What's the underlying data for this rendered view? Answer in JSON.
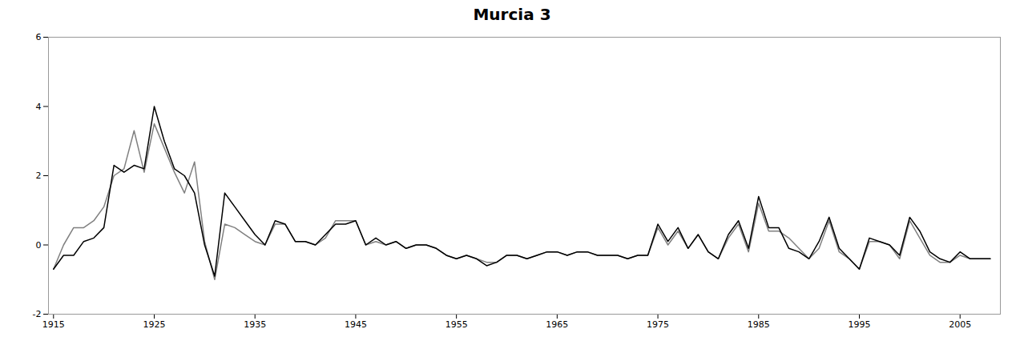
{
  "chart_data": {
    "type": "line",
    "title": "Murcia 3",
    "x": [
      1915,
      1916,
      1917,
      1918,
      1919,
      1920,
      1921,
      1922,
      1923,
      1924,
      1925,
      1926,
      1927,
      1928,
      1929,
      1930,
      1931,
      1932,
      1933,
      1934,
      1935,
      1936,
      1937,
      1938,
      1939,
      1940,
      1941,
      1942,
      1943,
      1944,
      1945,
      1946,
      1947,
      1948,
      1949,
      1950,
      1951,
      1952,
      1953,
      1954,
      1955,
      1956,
      1957,
      1958,
      1959,
      1960,
      1961,
      1962,
      1963,
      1964,
      1965,
      1966,
      1967,
      1968,
      1969,
      1970,
      1971,
      1972,
      1973,
      1974,
      1975,
      1976,
      1977,
      1978,
      1979,
      1980,
      1981,
      1982,
      1983,
      1984,
      1985,
      1986,
      1987,
      1988,
      1989,
      1990,
      1991,
      1992,
      1993,
      1994,
      1995,
      1996,
      1997,
      1998,
      1999,
      2000,
      2001,
      2002,
      2003,
      2004,
      2005,
      2006,
      2007,
      2008
    ],
    "series": [
      {
        "color": "#808080",
        "values": [
          -0.7,
          0.0,
          0.5,
          0.5,
          0.7,
          1.1,
          2.0,
          2.2,
          3.3,
          2.1,
          3.5,
          2.8,
          2.1,
          1.5,
          2.4,
          0.1,
          -1.0,
          0.6,
          0.5,
          0.3,
          0.1,
          0.0,
          0.6,
          0.6,
          0.1,
          0.1,
          0.0,
          0.2,
          0.7,
          0.7,
          0.7,
          0.0,
          0.1,
          0.0,
          0.1,
          -0.1,
          0.0,
          0.0,
          -0.1,
          -0.3,
          -0.4,
          -0.3,
          -0.4,
          -0.5,
          -0.5,
          -0.3,
          -0.3,
          -0.4,
          -0.3,
          -0.2,
          -0.2,
          -0.3,
          -0.2,
          -0.2,
          -0.3,
          -0.3,
          -0.3,
          -0.4,
          -0.3,
          -0.3,
          0.5,
          0.0,
          0.4,
          -0.1,
          0.3,
          -0.2,
          -0.4,
          0.2,
          0.6,
          -0.2,
          1.2,
          0.4,
          0.4,
          0.2,
          -0.1,
          -0.4,
          -0.1,
          0.7,
          -0.2,
          -0.4,
          -0.7,
          0.1,
          0.1,
          0.0,
          -0.4,
          0.7,
          0.2,
          -0.3,
          -0.5,
          -0.5,
          -0.3,
          -0.4,
          -0.4,
          -0.4
        ]
      },
      {
        "color": "#000000",
        "values": [
          -0.7,
          -0.3,
          -0.3,
          0.1,
          0.2,
          0.5,
          2.3,
          2.1,
          2.3,
          2.2,
          4.0,
          3.0,
          2.2,
          2.0,
          1.5,
          0.0,
          -0.9,
          1.5,
          1.1,
          0.7,
          0.3,
          0.0,
          0.7,
          0.6,
          0.1,
          0.1,
          0.0,
          0.3,
          0.6,
          0.6,
          0.7,
          0.0,
          0.2,
          0.0,
          0.1,
          -0.1,
          0.0,
          0.0,
          -0.1,
          -0.3,
          -0.4,
          -0.3,
          -0.4,
          -0.6,
          -0.5,
          -0.3,
          -0.3,
          -0.4,
          -0.3,
          -0.2,
          -0.2,
          -0.3,
          -0.2,
          -0.2,
          -0.3,
          -0.3,
          -0.3,
          -0.4,
          -0.3,
          -0.3,
          0.6,
          0.1,
          0.5,
          -0.1,
          0.3,
          -0.2,
          -0.4,
          0.3,
          0.7,
          -0.1,
          1.4,
          0.5,
          0.5,
          -0.1,
          -0.2,
          -0.4,
          0.1,
          0.8,
          -0.1,
          -0.4,
          -0.7,
          0.2,
          0.1,
          0.0,
          -0.3,
          0.8,
          0.4,
          -0.2,
          -0.4,
          -0.5,
          -0.2,
          -0.4,
          -0.4,
          -0.4
        ]
      }
    ],
    "xlim": [
      1914.5,
      2009
    ],
    "xticks": [
      1915,
      1925,
      1935,
      1945,
      1955,
      1965,
      1975,
      1985,
      1995,
      2005
    ],
    "ylim": [
      -2,
      6
    ],
    "yticks": [
      -2,
      0,
      2,
      4,
      6
    ],
    "grid": false
  }
}
